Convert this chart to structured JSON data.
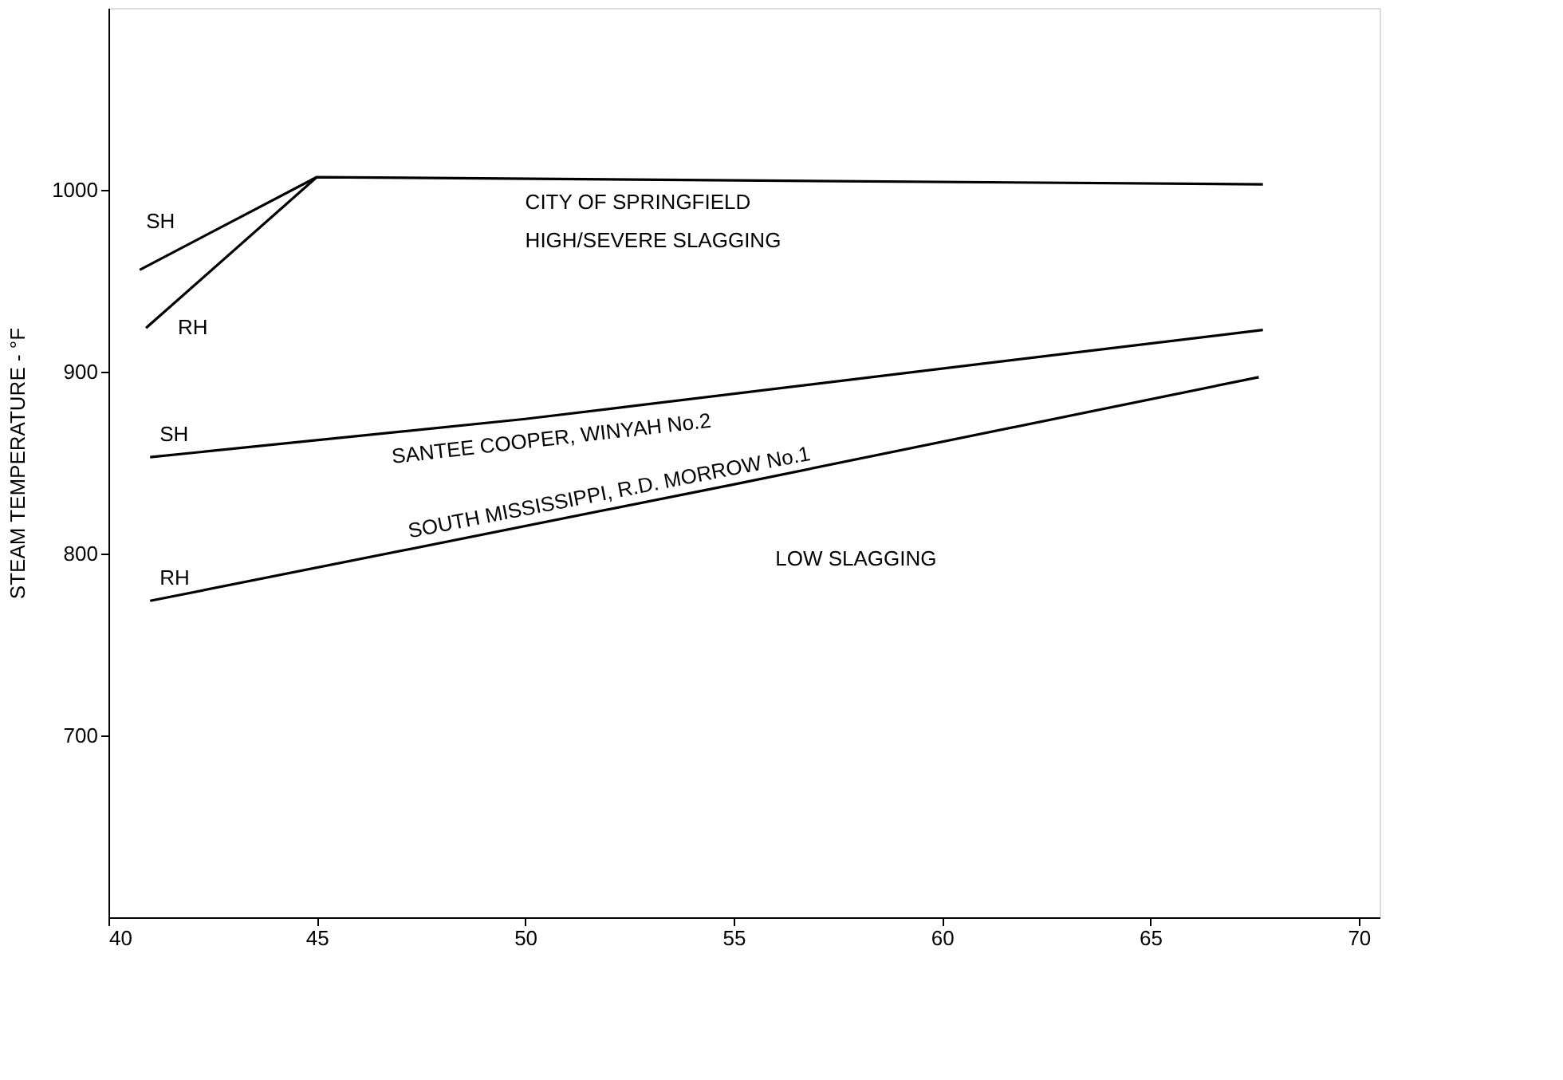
{
  "chart_data": {
    "type": "line",
    "ylabel": "STEAM TEMPERATURE - °F",
    "xlim": [
      40,
      70.5
    ],
    "ylim": [
      600,
      1100
    ],
    "xticks": [
      40,
      45,
      50,
      55,
      60,
      65,
      70
    ],
    "yticks": [
      700,
      800,
      900,
      1000
    ],
    "grid": false,
    "marker": "none",
    "line_style": "solid",
    "series": [
      {
        "name": "SH",
        "color": "#000000",
        "x": [
          40.75,
          45,
          67.7
        ],
        "values": [
          956,
          1007,
          1003
        ]
      },
      {
        "name": "RH",
        "color": "#000000",
        "x": [
          40.9,
          45
        ],
        "values": [
          924,
          1007
        ]
      },
      {
        "name": "SH",
        "color": "#000000",
        "x": [
          41,
          50,
          67.7
        ],
        "values": [
          853,
          874,
          923
        ]
      },
      {
        "name": "RH",
        "color": "#000000",
        "x": [
          41,
          55,
          67.6
        ],
        "values": [
          774,
          838,
          897
        ]
      }
    ],
    "annotations": [
      "CITY OF SPRINGFIELD",
      "HIGH/SEVERE SLAGGING",
      "SANTEE COOPER, WINYAH No.2",
      "SOUTH MISSISSIPPI, R.D. MORROW No.1",
      "LOW SLAGGING"
    ]
  }
}
